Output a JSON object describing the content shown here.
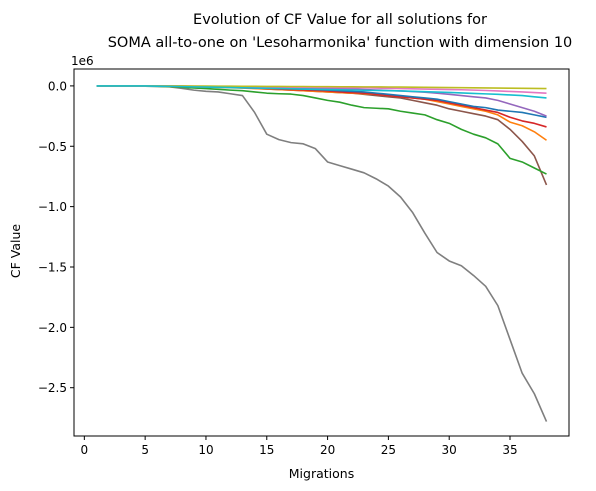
{
  "chart_data": {
    "type": "line",
    "title_line1": "Evolution of CF Value for all solutions for",
    "title_line2": "SOMA all-to-one on 'Lesoharmonika' function with dimension 10",
    "xlabel": "Migrations",
    "ylabel": "CF Value",
    "y_offset_label": "1e6",
    "xlim": [
      -0.85,
      39.85
    ],
    "ylim": [
      -2.9,
      0.14
    ],
    "y_scale_note": "values in units of 1e6",
    "xticks": [
      0,
      5,
      10,
      15,
      20,
      25,
      30,
      35
    ],
    "xtick_labels": [
      "0",
      "5",
      "10",
      "15",
      "20",
      "25",
      "30",
      "35"
    ],
    "yticks": [
      0.0,
      -0.5,
      -1.0,
      -1.5,
      -2.0,
      -2.5
    ],
    "ytick_labels": [
      "0.0",
      "−0.5",
      "−1.0",
      "−1.5",
      "−2.0",
      "−2.5"
    ],
    "grid": false,
    "legend": "none",
    "x": [
      1,
      2,
      3,
      4,
      5,
      6,
      7,
      8,
      9,
      10,
      11,
      12,
      13,
      14,
      15,
      16,
      17,
      18,
      19,
      20,
      21,
      22,
      23,
      24,
      25,
      26,
      27,
      28,
      29,
      30,
      31,
      32,
      33,
      34,
      35,
      36,
      37,
      38
    ],
    "series": [
      {
        "color": "#7f7f7f",
        "values": [
          0,
          0,
          0,
          0,
          -0.003,
          -0.005,
          -0.008,
          -0.02,
          -0.035,
          -0.045,
          -0.05,
          -0.065,
          -0.08,
          -0.22,
          -0.4,
          -0.445,
          -0.47,
          -0.48,
          -0.52,
          -0.63,
          -0.66,
          -0.69,
          -0.72,
          -0.77,
          -0.83,
          -0.92,
          -1.05,
          -1.22,
          -1.38,
          -1.45,
          -1.49,
          -1.57,
          -1.66,
          -1.82,
          -2.1,
          -2.38,
          -2.55,
          -2.78
        ]
      },
      {
        "color": "#8c564b",
        "values": [
          0,
          0,
          0,
          0,
          0,
          0,
          -0.002,
          -0.004,
          -0.006,
          -0.008,
          -0.01,
          -0.013,
          -0.016,
          -0.02,
          -0.025,
          -0.03,
          -0.035,
          -0.04,
          -0.045,
          -0.05,
          -0.055,
          -0.06,
          -0.07,
          -0.08,
          -0.09,
          -0.1,
          -0.12,
          -0.14,
          -0.16,
          -0.19,
          -0.21,
          -0.23,
          -0.25,
          -0.28,
          -0.36,
          -0.46,
          -0.58,
          -0.82
        ]
      },
      {
        "color": "#2ca02c",
        "values": [
          0,
          0,
          0,
          0,
          -0.002,
          -0.004,
          -0.007,
          -0.012,
          -0.017,
          -0.022,
          -0.028,
          -0.035,
          -0.04,
          -0.05,
          -0.06,
          -0.065,
          -0.068,
          -0.08,
          -0.1,
          -0.12,
          -0.135,
          -0.16,
          -0.18,
          -0.185,
          -0.19,
          -0.21,
          -0.225,
          -0.24,
          -0.28,
          -0.31,
          -0.36,
          -0.4,
          -0.43,
          -0.48,
          -0.6,
          -0.63,
          -0.68,
          -0.73
        ]
      },
      {
        "color": "#ff7f0e",
        "values": [
          0,
          0,
          0,
          0,
          0,
          -0.002,
          -0.004,
          -0.006,
          -0.008,
          -0.01,
          -0.012,
          -0.015,
          -0.018,
          -0.022,
          -0.026,
          -0.03,
          -0.035,
          -0.04,
          -0.045,
          -0.05,
          -0.055,
          -0.06,
          -0.065,
          -0.07,
          -0.08,
          -0.09,
          -0.1,
          -0.11,
          -0.13,
          -0.15,
          -0.17,
          -0.19,
          -0.21,
          -0.24,
          -0.3,
          -0.33,
          -0.38,
          -0.45
        ]
      },
      {
        "color": "#d62728",
        "values": [
          0,
          0,
          0,
          0,
          0,
          -0.001,
          -0.002,
          -0.004,
          -0.006,
          -0.008,
          -0.01,
          -0.012,
          -0.015,
          -0.018,
          -0.022,
          -0.026,
          -0.03,
          -0.034,
          -0.038,
          -0.042,
          -0.05,
          -0.055,
          -0.06,
          -0.07,
          -0.08,
          -0.09,
          -0.1,
          -0.11,
          -0.12,
          -0.14,
          -0.16,
          -0.18,
          -0.2,
          -0.22,
          -0.26,
          -0.29,
          -0.31,
          -0.34
        ]
      },
      {
        "color": "#1f77b4",
        "values": [
          0,
          0,
          0,
          0,
          0,
          0,
          -0.001,
          -0.002,
          -0.004,
          -0.006,
          -0.008,
          -0.01,
          -0.012,
          -0.015,
          -0.018,
          -0.02,
          -0.023,
          -0.026,
          -0.03,
          -0.035,
          -0.04,
          -0.045,
          -0.05,
          -0.06,
          -0.07,
          -0.08,
          -0.09,
          -0.1,
          -0.11,
          -0.13,
          -0.15,
          -0.17,
          -0.18,
          -0.2,
          -0.21,
          -0.22,
          -0.24,
          -0.26
        ]
      },
      {
        "color": "#9467bd",
        "values": [
          0,
          0,
          0,
          0,
          0,
          0,
          -0.001,
          -0.002,
          -0.003,
          -0.004,
          -0.005,
          -0.006,
          -0.007,
          -0.008,
          -0.01,
          -0.012,
          -0.014,
          -0.016,
          -0.018,
          -0.02,
          -0.023,
          -0.026,
          -0.03,
          -0.034,
          -0.038,
          -0.042,
          -0.047,
          -0.052,
          -0.06,
          -0.07,
          -0.08,
          -0.09,
          -0.1,
          -0.12,
          -0.15,
          -0.18,
          -0.21,
          -0.25
        ]
      },
      {
        "color": "#e377c2",
        "values": [
          0,
          0,
          0,
          0,
          0,
          0,
          0,
          -0.001,
          -0.002,
          -0.003,
          -0.004,
          -0.005,
          -0.006,
          -0.007,
          -0.008,
          -0.009,
          -0.01,
          -0.011,
          -0.012,
          -0.013,
          -0.014,
          -0.015,
          -0.016,
          -0.018,
          -0.02,
          -0.022,
          -0.024,
          -0.026,
          -0.028,
          -0.03,
          -0.032,
          -0.035,
          -0.038,
          -0.042,
          -0.046,
          -0.05,
          -0.055,
          -0.06
        ]
      },
      {
        "color": "#bcbd22",
        "values": [
          0,
          0,
          0,
          0,
          0,
          0,
          0,
          0,
          -0.001,
          -0.001,
          -0.002,
          -0.002,
          -0.003,
          -0.003,
          -0.004,
          -0.004,
          -0.005,
          -0.005,
          -0.006,
          -0.006,
          -0.007,
          -0.007,
          -0.008,
          -0.008,
          -0.009,
          -0.01,
          -0.011,
          -0.012,
          -0.013,
          -0.014,
          -0.015,
          -0.016,
          -0.017,
          -0.018,
          -0.019,
          -0.02,
          -0.021,
          -0.022
        ]
      },
      {
        "color": "#17becf",
        "values": [
          0,
          0,
          0,
          0,
          0,
          -0.002,
          -0.004,
          -0.006,
          -0.008,
          -0.01,
          -0.012,
          -0.014,
          -0.016,
          -0.018,
          -0.02,
          -0.022,
          -0.024,
          -0.026,
          -0.028,
          -0.03,
          -0.032,
          -0.034,
          -0.036,
          -0.038,
          -0.04,
          -0.042,
          -0.045,
          -0.048,
          -0.051,
          -0.054,
          -0.058,
          -0.062,
          -0.066,
          -0.07,
          -0.075,
          -0.08,
          -0.09,
          -0.1
        ]
      }
    ]
  }
}
